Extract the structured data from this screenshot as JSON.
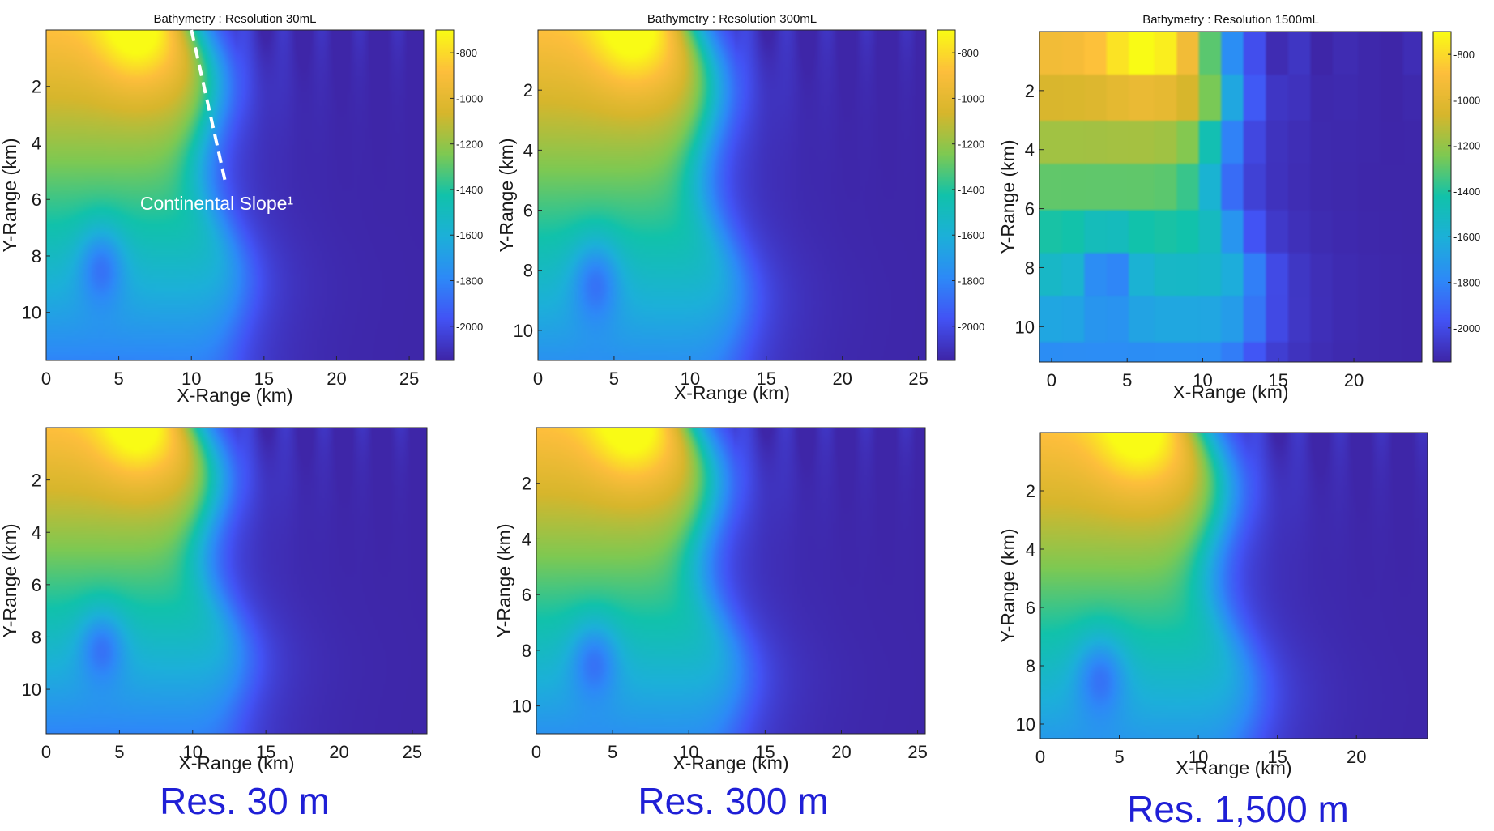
{
  "colormap": [
    "#3e26a8",
    "#4253f5",
    "#2d8af7",
    "#1cb0d9",
    "#11c2ab",
    "#7ec952",
    "#d7b62c",
    "#fdbe3c",
    "#f9fb15"
  ],
  "annotation_color": "#ffffff",
  "caption_color": "#1f1fd6",
  "captions": {
    "col1": "Res. 30 m",
    "col2": "Res. 300 m",
    "col3": "Res. 1,500 m"
  },
  "chart_data": [
    {
      "id": "top-30",
      "type": "heatmap",
      "title": "Bathymetry : Resolution 30mL",
      "xlabel": "X-Range (km)",
      "ylabel": "Y-Range (km)",
      "xlim": [
        0,
        26
      ],
      "ylim": [
        11.7,
        0
      ],
      "xticks": [
        "0",
        "5",
        "10",
        "15",
        "20",
        "25"
      ],
      "xtick_values": [
        0,
        5,
        10,
        15,
        20,
        25
      ],
      "yticks": [
        "2",
        "4",
        "6",
        "8",
        "10"
      ],
      "ytick_values": [
        2,
        4,
        6,
        8,
        10
      ],
      "blocky": false,
      "colorbar": true,
      "clim": [
        -2150,
        -700
      ],
      "cticks": [
        "-800",
        "-1000",
        "-1200",
        "-1400",
        "-1600",
        "-1800",
        "-2000"
      ],
      "ctick_values": [
        -800,
        -1000,
        -1200,
        -1400,
        -1600,
        -1800,
        -2000
      ],
      "annotation": {
        "text": "Continental Slope¹",
        "line_from": [
          10,
          0
        ],
        "line_to": [
          12.3,
          5.3
        ]
      }
    },
    {
      "id": "top-300",
      "type": "heatmap",
      "title": "Bathymetry : Resolution 300mL",
      "xlabel": "X-Range (km)",
      "ylabel": "Y-Range (km)",
      "xlim": [
        0,
        25.5
      ],
      "ylim": [
        11,
        0
      ],
      "xticks": [
        "0",
        "5",
        "10",
        "15",
        "20",
        "25"
      ],
      "xtick_values": [
        0,
        5,
        10,
        15,
        20,
        25
      ],
      "yticks": [
        "2",
        "4",
        "6",
        "8",
        "10"
      ],
      "ytick_values": [
        2,
        4,
        6,
        8,
        10
      ],
      "blocky": false,
      "colorbar": true,
      "clim": [
        -2150,
        -700
      ],
      "cticks": [
        "-800",
        "-1000",
        "-1200",
        "-1400",
        "-1600",
        "-1800",
        "-2000"
      ],
      "ctick_values": [
        -800,
        -1000,
        -1200,
        -1400,
        -1600,
        -1800,
        -2000
      ]
    },
    {
      "id": "top-1500",
      "type": "heatmap",
      "title": "Bathymetry : Resolution 1500mL",
      "xlabel": "X-Range (km)",
      "ylabel": "Y-Range (km)",
      "xlim": [
        -0.8,
        24.5
      ],
      "ylim": [
        11.2,
        0
      ],
      "xticks": [
        "0",
        "5",
        "10",
        "15",
        "20"
      ],
      "xtick_values": [
        0,
        5,
        10,
        15,
        20
      ],
      "yticks": [
        "2",
        "4",
        "6",
        "8",
        "10"
      ],
      "ytick_values": [
        2,
        4,
        6,
        8,
        10
      ],
      "blocky": true,
      "block_size_km": 1.5,
      "colorbar": true,
      "clim": [
        -2150,
        -700
      ],
      "cticks": [
        "-800",
        "-1000",
        "-1200",
        "-1400",
        "-1600",
        "-1800",
        "-2000"
      ],
      "ctick_values": [
        -800,
        -1000,
        -1200,
        -1400,
        -1600,
        -1800,
        -2000
      ]
    },
    {
      "id": "bottom-30",
      "type": "heatmap",
      "title": "",
      "xlabel": "X-Range (km)",
      "ylabel": "Y-Range (km)",
      "xlim": [
        0,
        26
      ],
      "ylim": [
        11.7,
        0
      ],
      "xticks": [
        "0",
        "5",
        "10",
        "15",
        "20",
        "25"
      ],
      "xtick_values": [
        0,
        5,
        10,
        15,
        20,
        25
      ],
      "yticks": [
        "2",
        "4",
        "6",
        "8",
        "10"
      ],
      "ytick_values": [
        2,
        4,
        6,
        8,
        10
      ],
      "blocky": false,
      "colorbar": false,
      "clim": [
        -2150,
        -700
      ]
    },
    {
      "id": "bottom-300",
      "type": "heatmap",
      "title": "",
      "xlabel": "X-Range (km)",
      "ylabel": "Y-Range (km)",
      "xlim": [
        0,
        25.5
      ],
      "ylim": [
        11,
        0
      ],
      "xticks": [
        "0",
        "5",
        "10",
        "15",
        "20",
        "25"
      ],
      "xtick_values": [
        0,
        5,
        10,
        15,
        20,
        25
      ],
      "yticks": [
        "2",
        "4",
        "6",
        "8",
        "10"
      ],
      "ytick_values": [
        2,
        4,
        6,
        8,
        10
      ],
      "blocky": false,
      "colorbar": false,
      "clim": [
        -2150,
        -700
      ]
    },
    {
      "id": "bottom-1500",
      "type": "heatmap",
      "title": "",
      "xlabel": "X-Range (km)",
      "ylabel": "Y-Range (km)",
      "xlim": [
        0,
        24.5
      ],
      "ylim": [
        10.5,
        0
      ],
      "xticks": [
        "0",
        "5",
        "10",
        "15",
        "20"
      ],
      "xtick_values": [
        0,
        5,
        10,
        15,
        20
      ],
      "yticks": [
        "2",
        "4",
        "6",
        "8",
        "10"
      ],
      "ytick_values": [
        2,
        4,
        6,
        8,
        10
      ],
      "blocky": false,
      "colorbar": false,
      "clim": [
        -2150,
        -700
      ]
    }
  ]
}
